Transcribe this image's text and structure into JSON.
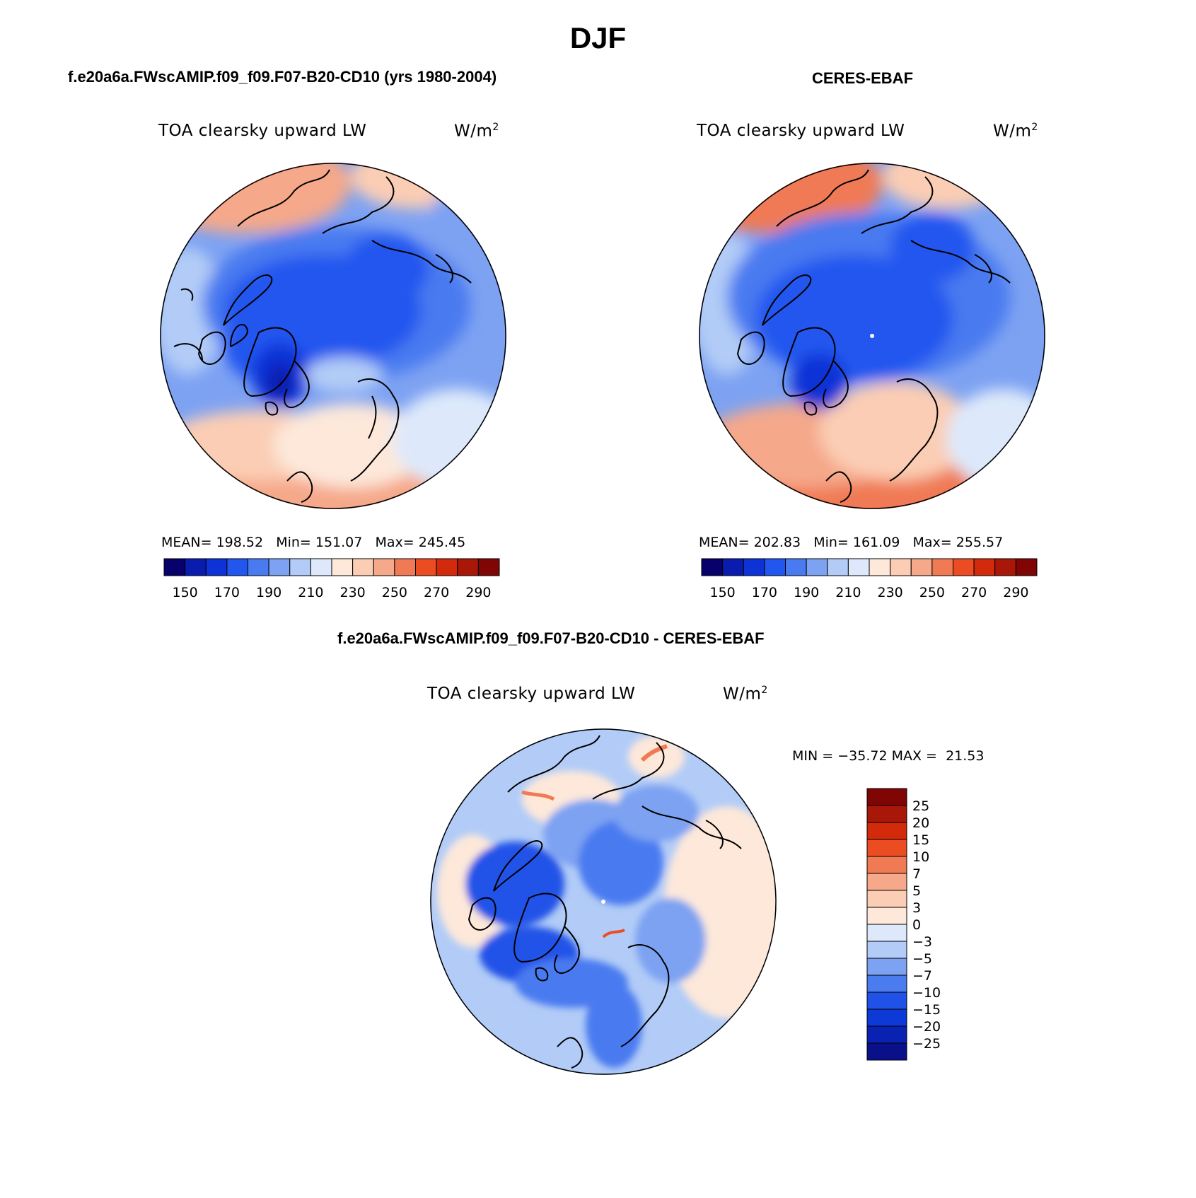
{
  "figure": {
    "season_title": "DJF",
    "variable": "TOA clearsky upward LW",
    "units_base": "W/m",
    "units_exp": "2"
  },
  "panels": [
    {
      "id": "model",
      "title": "f.e20a6a.FWscAMIP.f09_f09.F07-B20-CD10 (yrs 1980-2004)",
      "mean_label": "MEAN=",
      "mean": "198.52",
      "min_label": "Min=",
      "min": "151.07",
      "max_label": "Max=",
      "max": "245.45"
    },
    {
      "id": "obs",
      "title": "CERES-EBAF",
      "mean_label": "MEAN=",
      "mean": "202.83",
      "min_label": "Min=",
      "min": "161.09",
      "max_label": "Max=",
      "max": "255.57"
    }
  ],
  "difference_panel": {
    "title": "f.e20a6a.FWscAMIP.f09_f09.F07-B20-CD10 - CERES-EBAF",
    "min_label": "MIN =",
    "min": "−35.72",
    "max_label": "MAX =",
    "max": "21.53"
  },
  "abs_colorbar": {
    "colors": [
      "#08006b",
      "#0a1cae",
      "#0d33d6",
      "#2156ef",
      "#4a7af0",
      "#7da2f2",
      "#b2ccf7",
      "#dde9fb",
      "#fde8da",
      "#fbcdb4",
      "#f5a88a",
      "#f07a54",
      "#ec4c22",
      "#d42a0c",
      "#a81708",
      "#800505"
    ],
    "tick_labels": [
      "150",
      "170",
      "190",
      "210",
      "230",
      "250",
      "270",
      "290"
    ]
  },
  "diff_colorbar": {
    "colors": [
      "#0a0f8a",
      "#0a22b2",
      "#0d3ad6",
      "#2052e8",
      "#4a7bef",
      "#7da2f2",
      "#b2ccf7",
      "#dde9fb",
      "#fde8da",
      "#fbcdb4",
      "#f5a88a",
      "#f07a54",
      "#ec4c22",
      "#d42a0c",
      "#a81708",
      "#800505"
    ],
    "tick_labels": [
      "25",
      "20",
      "15",
      "10",
      "7",
      "5",
      "3",
      "0",
      "−3",
      "−5",
      "−7",
      "−10",
      "−15",
      "−20",
      "−25"
    ]
  }
}
